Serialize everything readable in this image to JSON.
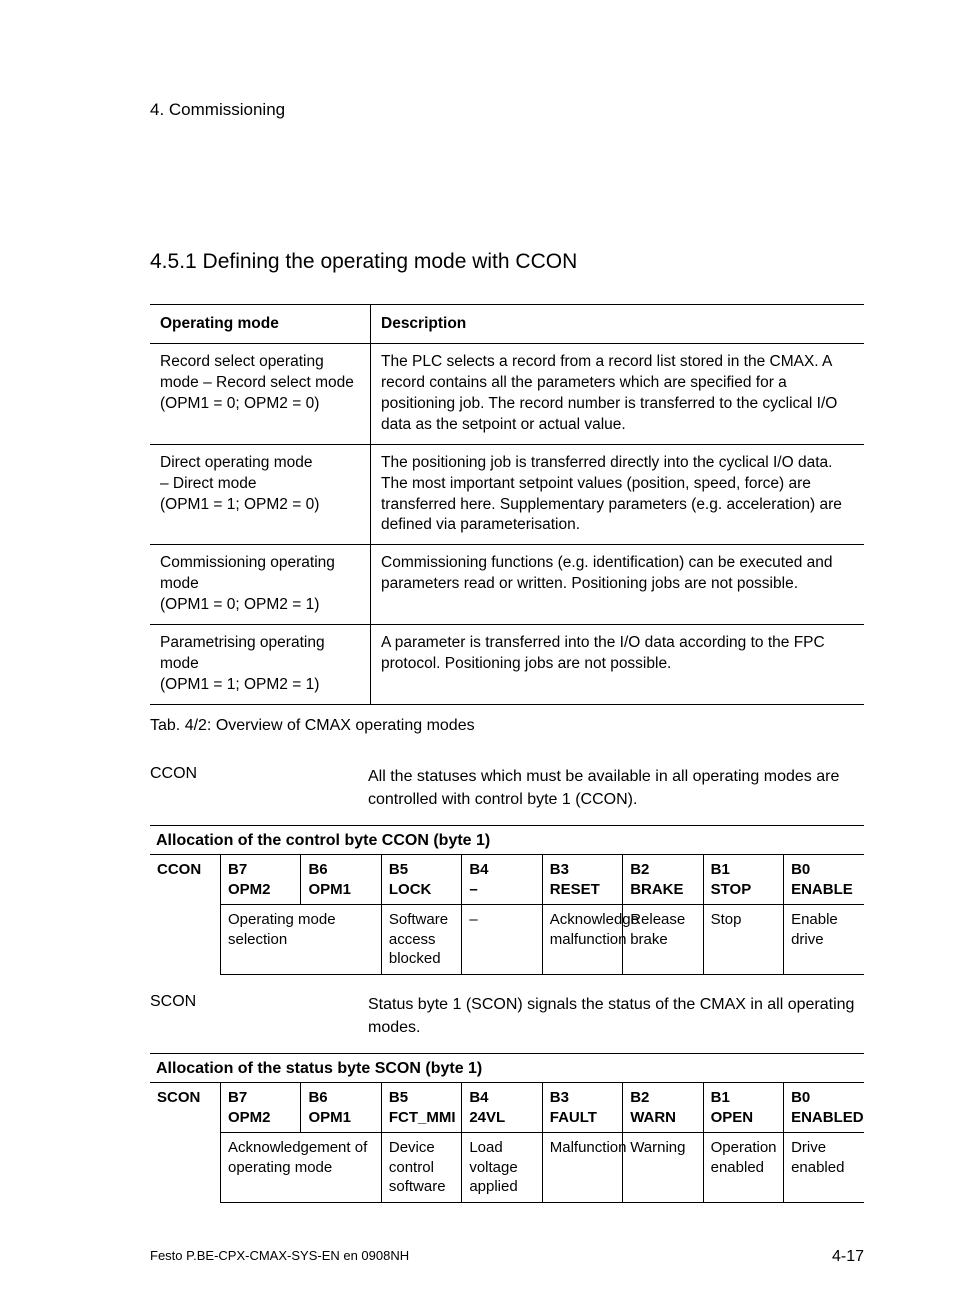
{
  "chapter": "4.  Commissioning",
  "section": "4.5.1    Defining the operating mode with CCON",
  "modes_table": {
    "headers": [
      "Operating mode",
      "Description"
    ],
    "rows": [
      {
        "mode": "Record select operating mode – Record select mode\n(OPM1 = 0; OPM2 = 0)",
        "desc": "The PLC selects a record from a record list stored in the CMAX. A record contains all the parameters which are specified for a positioning job. The record number is transferred to the cyclical I/O data as the setpoint or actual value."
      },
      {
        "mode": "Direct operating mode\n– Direct mode\n(OPM1 = 1; OPM2 = 0)",
        "desc": "The positioning job is transferred directly into the cyclical I/O data. The most important setpoint values (position, speed, force) are transferred here. Supplementary parameters (e.g. acceleration) are defined via parameterisation."
      },
      {
        "mode": "Commissioning operating mode\n(OPM1 = 0; OPM2 = 1)",
        "desc": "Commissioning functions (e.g. identification) can be executed and parameters read or written. Positioning jobs are not possible."
      },
      {
        "mode": "Parametrising operating mode\n(OPM1 = 1; OPM2 = 1)",
        "desc": "A parameter is transferred into the I/O data according to the FPC protocol. Positioning jobs are not possible."
      }
    ]
  },
  "caption": "Tab. 4/2:   Overview of CMAX operating modes",
  "ccon": {
    "label": "CCON",
    "text": "All the statuses which must be available in all operating modes are controlled with control byte 1 (CCON)."
  },
  "ccon_table": {
    "title": "Allocation of the control byte CCON (byte 1)",
    "label": "CCON",
    "bits_top": [
      "B7",
      "B6",
      "B5",
      "B4",
      "B3",
      "B2",
      "B1",
      "B0"
    ],
    "bits_bot": [
      "OPM2",
      "OPM1",
      "LOCK",
      "–",
      "RESET",
      "BRAKE",
      "STOP",
      "ENABLE"
    ],
    "desc": [
      "Operating mode selection",
      "",
      "Software access blocked",
      "–",
      "Acknowledge malfunction",
      "Release brake",
      "Stop",
      "Enable drive"
    ]
  },
  "scon": {
    "label": "SCON",
    "text": "Status byte 1 (SCON) signals the status of the CMAX in all operating modes."
  },
  "scon_table": {
    "title": "Allocation of the status byte SCON (byte 1)",
    "label": "SCON",
    "bits_top": [
      "B7",
      "B6",
      "B5",
      "B4",
      "B3",
      "B2",
      "B1",
      "B0"
    ],
    "bits_bot": [
      "OPM2",
      "OPM1",
      "FCT_MMI",
      "24VL",
      "FAULT",
      "WARN",
      "OPEN",
      "ENABLED"
    ],
    "desc": [
      "Acknowledgement of operating mode",
      "",
      "Device control software",
      "Load voltage applied",
      "Malfunction",
      "Warning",
      "Operation enabled",
      "Drive enabled"
    ]
  },
  "footer_left": "Festo P.BE-CPX-CMAX-SYS-EN en 0908NH",
  "footer_right": "4-17"
}
